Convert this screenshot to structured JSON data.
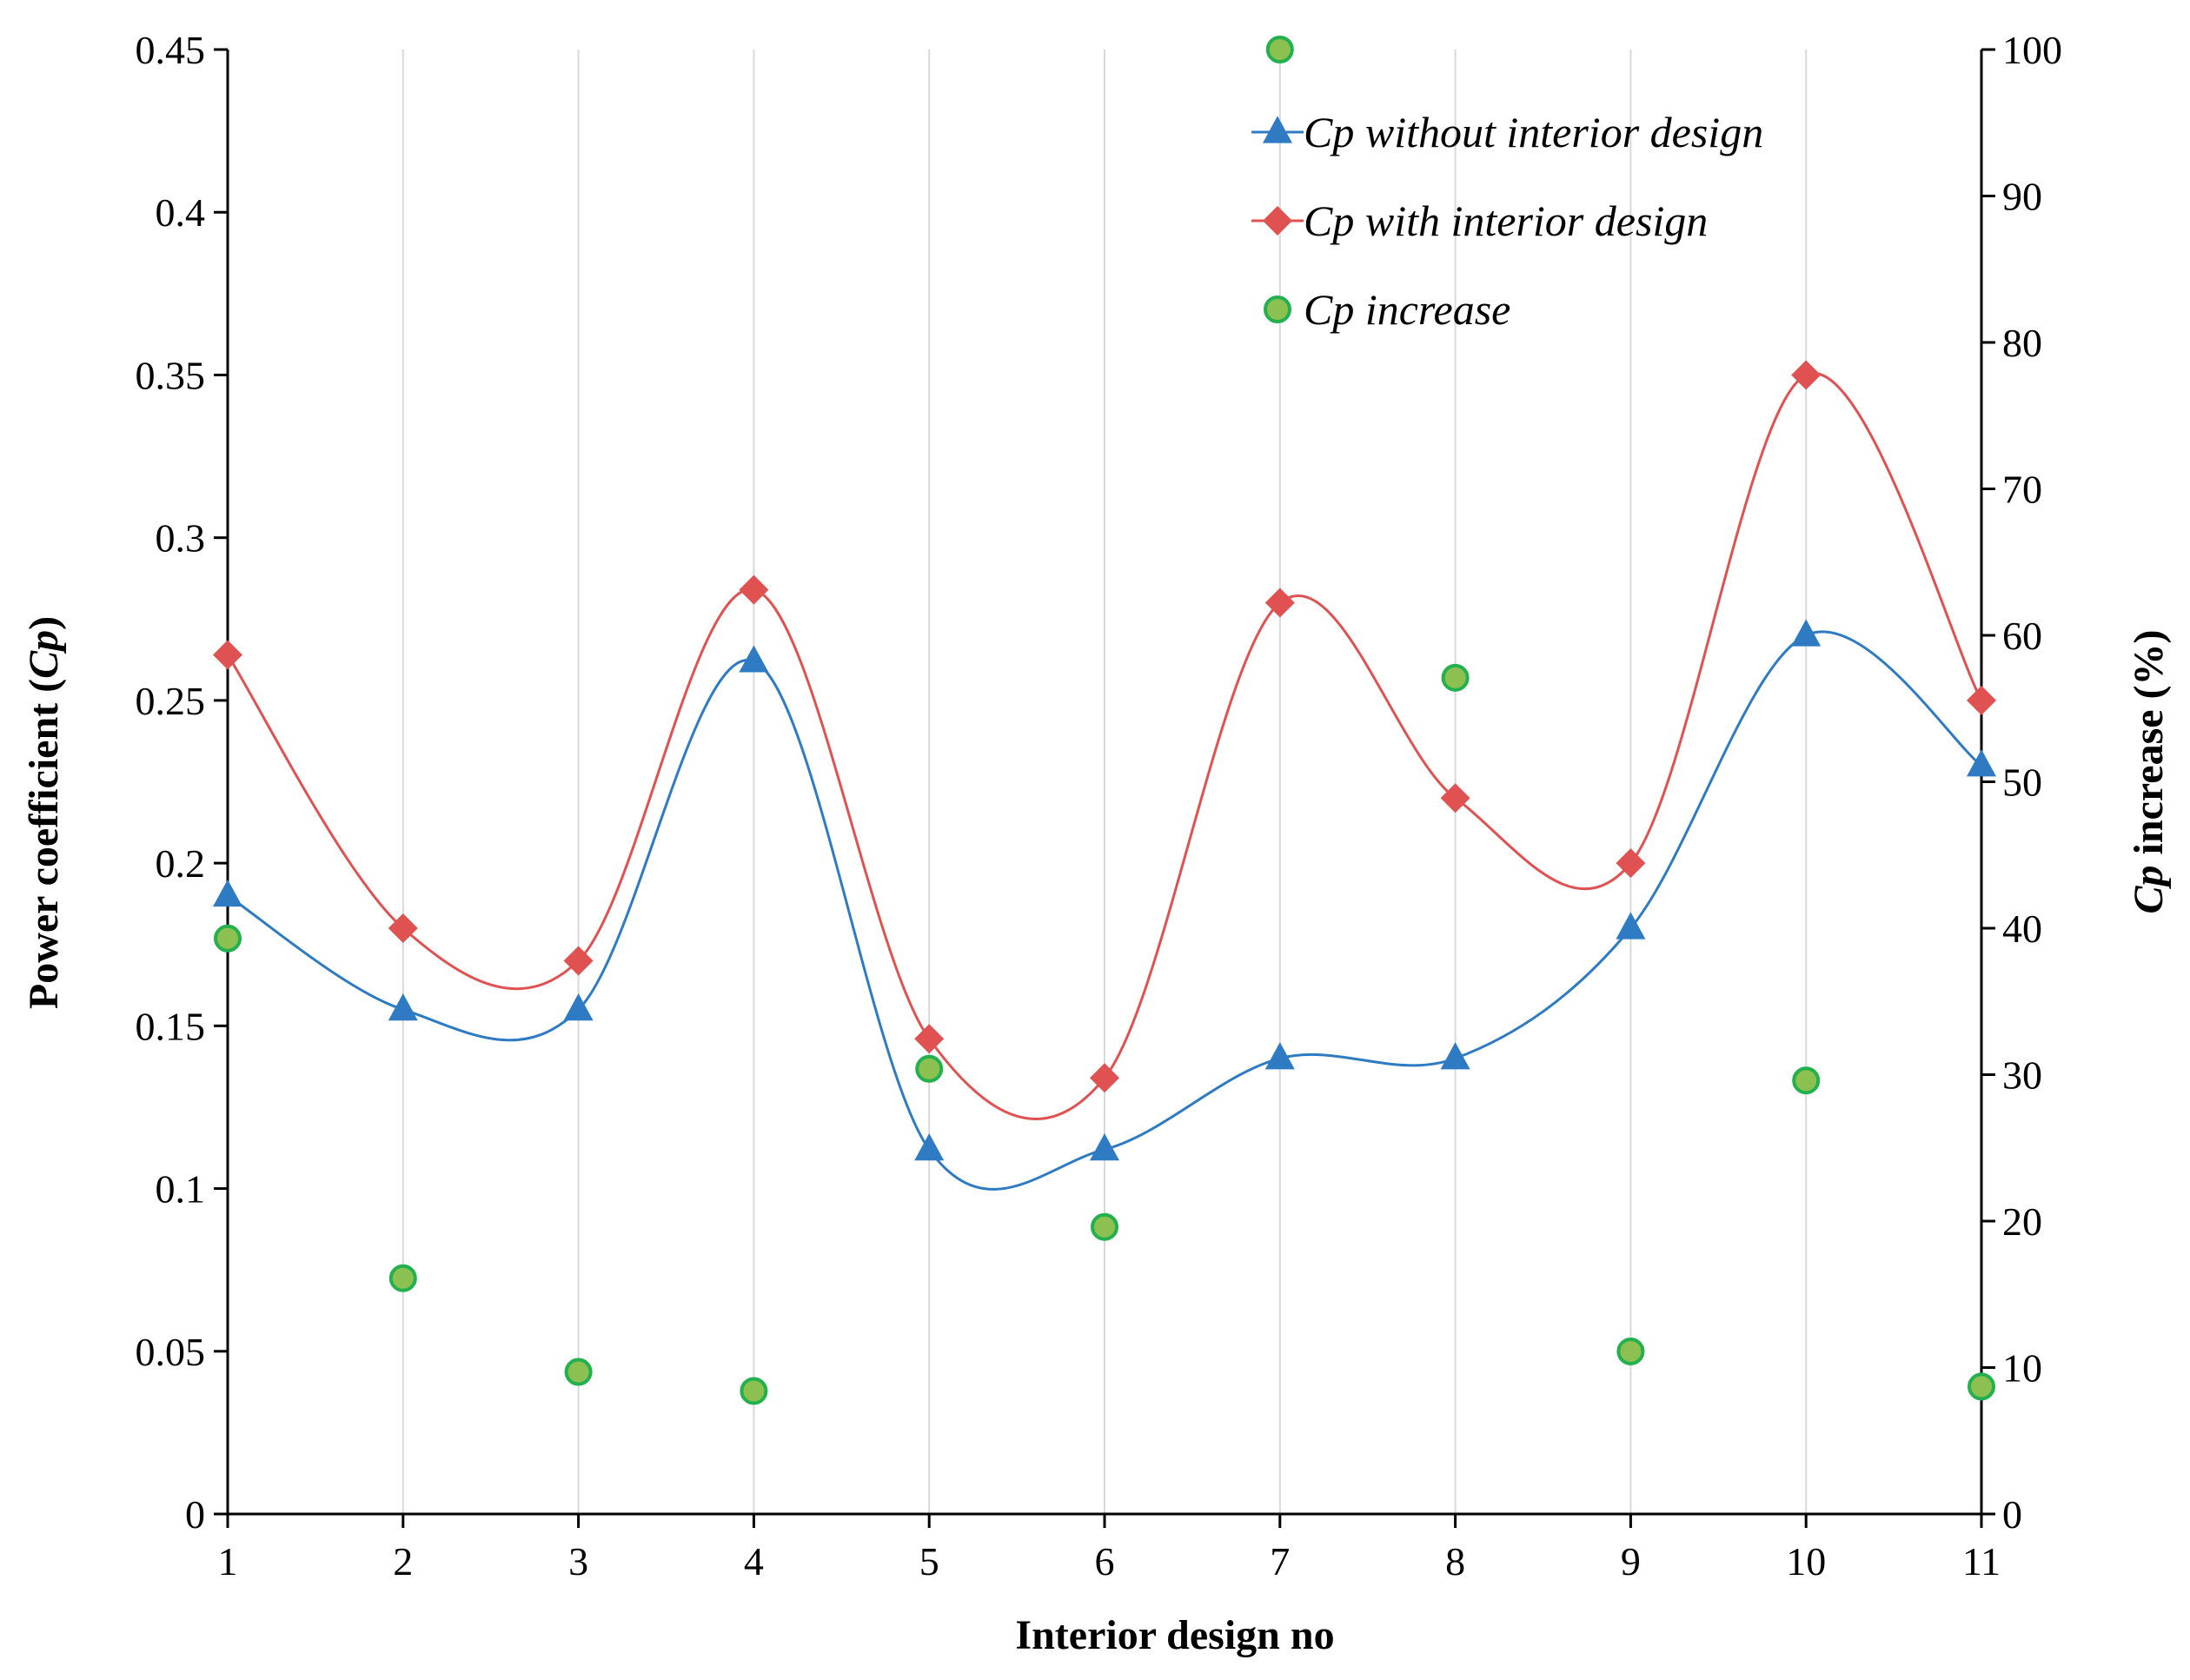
{
  "chart_data": {
    "type": "line",
    "title": "",
    "xlabel": "Interior design no",
    "ylabel_left": {
      "main": "Power coefficient (",
      "italic": "Cp",
      "close": ")"
    },
    "ylabel_right": {
      "italic": "Cp",
      "main": " increase (%)"
    },
    "x": [
      1,
      2,
      3,
      4,
      5,
      6,
      7,
      8,
      9,
      10,
      11
    ],
    "x_tick_labels": [
      "1",
      "2",
      "3",
      "4",
      "5",
      "6",
      "7",
      "8",
      "9",
      "10",
      "11"
    ],
    "xlim": [
      1,
      11
    ],
    "ylim_left": [
      0,
      0.45
    ],
    "y_left_ticks": [
      0,
      0.05,
      0.1,
      0.15,
      0.2,
      0.25,
      0.3,
      0.35,
      0.4,
      0.45
    ],
    "y_left_tick_labels": [
      "0",
      "0.05",
      "0.1",
      "0.15",
      "0.2",
      "0.25",
      "0.3",
      "0.35",
      "0.4",
      "0.45"
    ],
    "ylim_right": [
      0,
      100
    ],
    "y_right_ticks": [
      0,
      10,
      20,
      30,
      40,
      50,
      60,
      70,
      80,
      90,
      100
    ],
    "y_right_tick_labels": [
      "0",
      "10",
      "20",
      "30",
      "40",
      "50",
      "60",
      "70",
      "80",
      "90",
      "100"
    ],
    "grid": "vertical",
    "legend_position": "top-right",
    "series": [
      {
        "name": "Cp without interior design",
        "axis": "left",
        "marker": "triangle",
        "color": "#2e7bc4",
        "smooth": true,
        "values": [
          0.19,
          0.155,
          0.155,
          0.262,
          0.112,
          0.112,
          0.14,
          0.14,
          0.18,
          0.27,
          0.23
        ]
      },
      {
        "name": "Cp with interior design",
        "axis": "left",
        "marker": "diamond",
        "color": "#e05252",
        "smooth": true,
        "values": [
          0.264,
          0.18,
          0.17,
          0.284,
          0.146,
          0.134,
          0.28,
          0.22,
          0.2,
          0.35,
          0.25
        ]
      },
      {
        "name": "Cp increase",
        "axis": "right",
        "marker": "circle",
        "color": "#8cc152",
        "edge_color": "#22b14c",
        "smooth": false,
        "values": [
          39.3,
          16.1,
          9.7,
          8.4,
          30.4,
          19.6,
          100,
          57.1,
          11.1,
          29.6,
          8.7
        ]
      }
    ]
  }
}
